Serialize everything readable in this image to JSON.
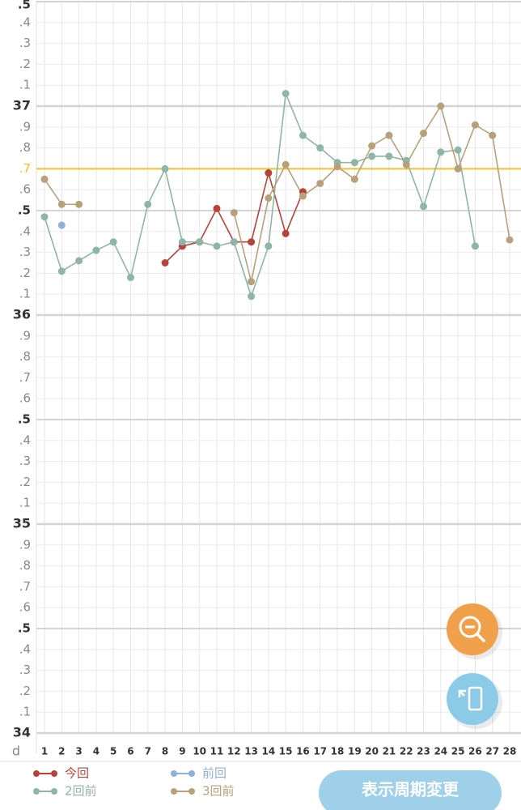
{
  "chart_data": {
    "type": "line",
    "x_label": "d",
    "x": [
      1,
      2,
      3,
      4,
      5,
      6,
      7,
      8,
      9,
      10,
      11,
      12,
      13,
      14,
      15,
      16,
      17,
      18,
      19,
      20,
      21,
      22,
      23,
      24,
      25,
      26,
      27,
      28
    ],
    "xlim": [
      1,
      28
    ],
    "xticks": [
      1,
      2,
      3,
      4,
      5,
      6,
      7,
      8,
      9,
      10,
      11,
      12,
      13,
      14,
      15,
      16,
      17,
      18,
      19,
      20,
      21,
      22,
      23,
      24,
      25,
      26,
      27,
      28
    ],
    "ylim": [
      34,
      37.5
    ],
    "yticks": [
      34,
      {
        "value": 34.1,
        "label": ".1"
      },
      {
        "value": 34.2,
        "label": ".2"
      },
      {
        "value": 34.3,
        "label": ".3"
      },
      {
        "value": 34.4,
        "label": ".4"
      },
      {
        "value": 34.5,
        "label": ".5"
      },
      {
        "value": 34.6,
        "label": ".6"
      },
      {
        "value": 34.7,
        "label": ".7"
      },
      {
        "value": 34.8,
        "label": ".8"
      },
      {
        "value": 34.9,
        "label": ".9"
      },
      35,
      {
        "value": 35.1,
        "label": ".1"
      },
      {
        "value": 35.2,
        "label": ".2"
      },
      {
        "value": 35.3,
        "label": ".3"
      },
      {
        "value": 35.4,
        "label": ".4"
      },
      {
        "value": 35.5,
        "label": ".5"
      },
      {
        "value": 35.6,
        "label": ".6"
      },
      {
        "value": 35.7,
        "label": ".7"
      },
      {
        "value": 35.8,
        "label": ".8"
      },
      {
        "value": 35.9,
        "label": ".9"
      },
      36,
      {
        "value": 36.1,
        "label": ".1"
      },
      {
        "value": 36.2,
        "label": ".2"
      },
      {
        "value": 36.3,
        "label": ".3"
      },
      {
        "value": 36.4,
        "label": ".4"
      },
      {
        "value": 36.5,
        "label": ".5"
      },
      {
        "value": 36.6,
        "label": ".6"
      },
      {
        "value": 36.7,
        "label": ".7"
      },
      {
        "value": 36.8,
        "label": ".8"
      },
      {
        "value": 36.9,
        "label": ".9"
      },
      37,
      {
        "value": 37.1,
        "label": ".1"
      },
      {
        "value": 37.2,
        "label": ".2"
      },
      {
        "value": 37.3,
        "label": ".3"
      },
      {
        "value": 37.4,
        "label": ".4"
      },
      {
        "value": 37.5,
        "label": ".5"
      }
    ],
    "grid": true,
    "reference_line": {
      "value": 36.7,
      "color": "#f2c12e"
    },
    "series": [
      {
        "name": "今回",
        "color": "#b5433a",
        "values": [
          null,
          null,
          null,
          null,
          null,
          null,
          null,
          36.25,
          36.33,
          36.35,
          36.51,
          36.35,
          36.35,
          36.68,
          36.39,
          36.59,
          null,
          null,
          null,
          null,
          null,
          null,
          null,
          null,
          null,
          null,
          null,
          null
        ]
      },
      {
        "name": "前回",
        "color": "#8fb0d8",
        "values": [
          null,
          36.43,
          null,
          null,
          null,
          null,
          null,
          null,
          null,
          null,
          null,
          null,
          null,
          null,
          null,
          null,
          null,
          null,
          null,
          null,
          null,
          null,
          null,
          null,
          null,
          null,
          null,
          null
        ]
      },
      {
        "name": "2回前",
        "color": "#8fb5a6",
        "values": [
          36.47,
          36.21,
          36.26,
          36.31,
          36.35,
          36.18,
          36.53,
          36.7,
          36.35,
          36.35,
          36.33,
          36.35,
          36.09,
          36.33,
          37.06,
          36.86,
          36.8,
          36.73,
          36.73,
          36.76,
          36.76,
          36.74,
          36.52,
          36.78,
          36.79,
          36.33,
          null,
          null
        ]
      },
      {
        "name": "3回前",
        "color": "#b8a07a",
        "values": [
          36.65,
          36.53,
          36.53,
          null,
          null,
          null,
          null,
          null,
          null,
          null,
          null,
          36.49,
          36.16,
          36.56,
          36.72,
          36.57,
          36.63,
          36.71,
          36.65,
          36.81,
          36.86,
          36.72,
          36.87,
          37.0,
          36.7,
          36.91,
          36.86,
          36.36
        ]
      }
    ],
    "button": "表示周期変更"
  }
}
